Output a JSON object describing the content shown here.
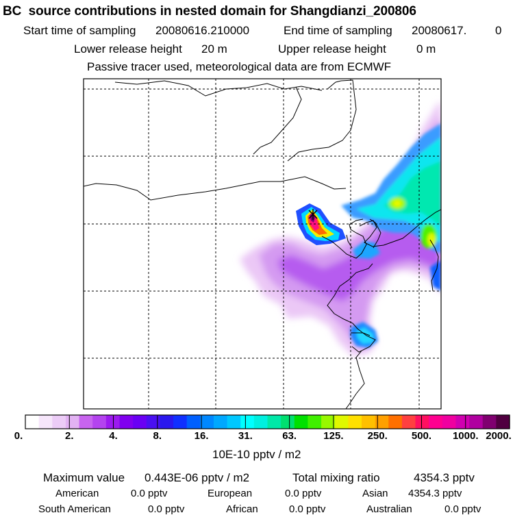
{
  "header": {
    "title": "BC  source contributions in nested domain for Shangdianzi_200806",
    "start_label": "Start time of sampling",
    "start_value": "20080616.210000",
    "end_label": "End time of sampling",
    "end_value": "20080617.",
    "end_extra": "0",
    "lower_label": "Lower release height",
    "lower_value": "20 m",
    "upper_label": "Upper release height",
    "upper_value": "0 m",
    "note": "Passive tracer used, meteorological data are from ECMWF"
  },
  "colorbar": {
    "unit": "10E-10 pptv / m2",
    "tick_labels": [
      "0.",
      "2.",
      "4.",
      "8.",
      "16.",
      "31.",
      "63.",
      "125.",
      "250.",
      "500.",
      "1000.",
      "2000."
    ],
    "colors": [
      "#ffffff",
      "#f6e6fb",
      "#ecccf7",
      "#e2b2f3",
      "#c864ef",
      "#b443ef",
      "#9c1aef",
      "#8000ef",
      "#6a00f4",
      "#4a10f2",
      "#2a18ee",
      "#1030ff",
      "#0060ff",
      "#0088ff",
      "#00a8ff",
      "#00c8ff",
      "#00ffff",
      "#00f0e0",
      "#00e8a8",
      "#00e070",
      "#00e000",
      "#40f000",
      "#98f800",
      "#e0f800",
      "#ffe000",
      "#ffc000",
      "#ffa000",
      "#ff7000",
      "#ff4040",
      "#ff1060",
      "#ff0090",
      "#f000a0",
      "#d000b0",
      "#b000a0",
      "#800070",
      "#500040"
    ]
  },
  "stats": {
    "max_label": "Maximum value",
    "max_value": "0.443E-06 pptv / m2",
    "total_label": "Total mixing ratio",
    "total_value": "4354.3 pptv",
    "regions": [
      {
        "name": "American",
        "value": "0.0 pptv"
      },
      {
        "name": "European",
        "value": "0.0 pptv"
      },
      {
        "name": "Asian",
        "value": "4354.3 pptv"
      },
      {
        "name": "South American",
        "value": "0.0 pptv"
      },
      {
        "name": "African",
        "value": "0.0 pptv"
      },
      {
        "name": "Australian",
        "value": "0.0 pptv"
      }
    ]
  },
  "chart_data": {
    "type": "heatmap",
    "title": "BC  source contributions in nested domain for Shangdianzi_200806",
    "colorbar_unit": "10E-10 pptv / m2",
    "levels": [
      0,
      2,
      4,
      8,
      16,
      31,
      63,
      125,
      250,
      500,
      1000,
      2000
    ],
    "maximum": "0.443E-06 pptv / m2",
    "total_mixing_ratio": "4354.3 pptv",
    "grid": true
  }
}
